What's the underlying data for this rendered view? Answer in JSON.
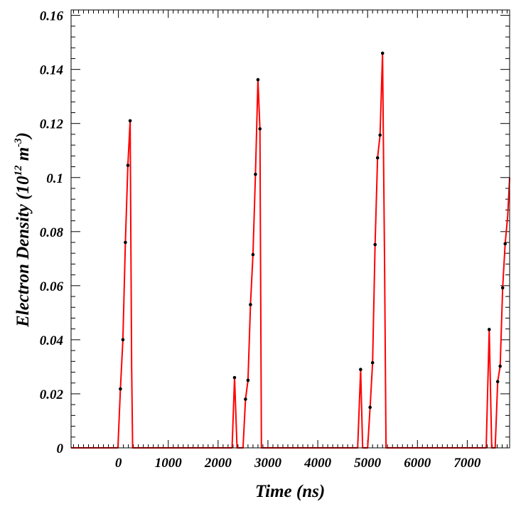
{
  "chart_data": {
    "type": "line",
    "xlabel": "Time (ns)",
    "ylabel": {
      "prefix": "Electron Density (10",
      "exp1": "12",
      "middle": " m",
      "exp2": "-3",
      "suffix": ")"
    },
    "xlim": [
      -950,
      7850
    ],
    "ylim": [
      0,
      0.162
    ],
    "x_ticks": [
      0,
      1000,
      2000,
      3000,
      4000,
      5000,
      6000,
      7000
    ],
    "x_tick_labels": [
      "0",
      "1000",
      "2000",
      "3000",
      "4000",
      "5000",
      "6000",
      "7000"
    ],
    "y_ticks": [
      0,
      0.02,
      0.04,
      0.06,
      0.08,
      0.1,
      0.12,
      0.14,
      0.16
    ],
    "y_tick_labels": [
      "0",
      "0.02",
      "0.04",
      "0.06",
      "0.08",
      "0.1",
      "0.12",
      "0.14",
      "0.16"
    ],
    "grid": false,
    "series": [
      {
        "color": "#ff0000",
        "marker_color": "#000000",
        "x": [
          -950,
          -10,
          40,
          90,
          140,
          190,
          235,
          265,
          285,
          2280,
          2330,
          2380,
          2450,
          2500,
          2550,
          2600,
          2650,
          2700,
          2750,
          2800,
          2840,
          2870,
          4800,
          4860,
          4900,
          5000,
          5050,
          5100,
          5150,
          5200,
          5250,
          5300,
          5340,
          5370,
          7380,
          7440,
          7490,
          7560,
          7610,
          7660,
          7710,
          7760,
          7810,
          7850
        ],
        "y": [
          0,
          0,
          0.0218,
          0.04,
          0.076,
          0.1045,
          0.121,
          0.03,
          0,
          0,
          0.026,
          0,
          0,
          0,
          0.018,
          0.025,
          0.053,
          0.0715,
          0.1012,
          0.1362,
          0.118,
          0,
          0,
          0.029,
          0,
          0,
          0.015,
          0.0315,
          0.0752,
          0.1073,
          0.1157,
          0.146,
          0.07,
          0,
          0,
          0.0438,
          0,
          0,
          0.0245,
          0.0302,
          0.0592,
          0.0755,
          0.0855,
          0.1
        ],
        "markers": [
          false,
          false,
          true,
          true,
          true,
          true,
          true,
          false,
          false,
          false,
          true,
          false,
          false,
          false,
          true,
          true,
          true,
          true,
          true,
          true,
          true,
          false,
          false,
          true,
          false,
          false,
          true,
          true,
          true,
          true,
          true,
          true,
          false,
          false,
          false,
          true,
          false,
          false,
          true,
          true,
          true,
          true,
          false,
          false
        ]
      }
    ]
  }
}
